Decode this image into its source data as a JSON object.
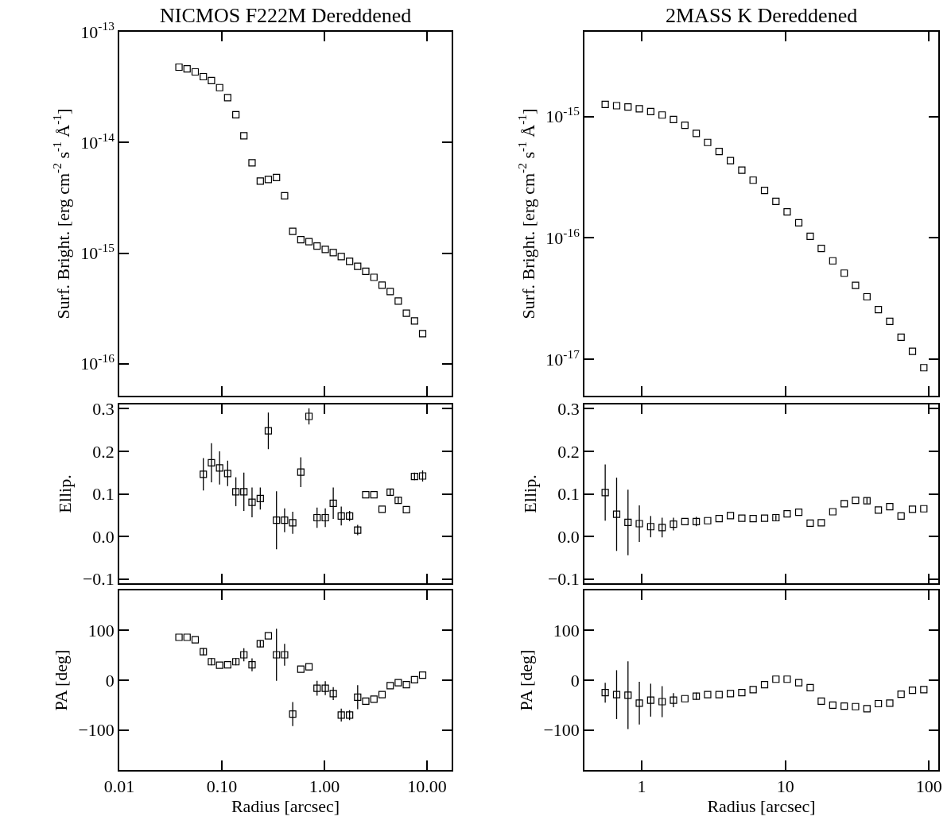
{
  "chart_data": [
    {
      "type": "scatter",
      "title": "NICMOS F222M Dereddened",
      "ylabel": "Surf. Bright. [erg cm$^{-2}$ s$^{-1}$ Å$^{-1}$]",
      "log": "xy",
      "marker": "square",
      "tick_labels": "y",
      "xlim": [
        0.01,
        17.4
      ],
      "xticks": [
        {
          "value": 0.1,
          "label": null
        },
        {
          "value": 1,
          "label": null
        },
        {
          "value": 10,
          "label": null
        }
      ],
      "ylim": [
        5.14e-17,
        1e-13
      ],
      "yticks": [
        {
          "value": 1e-13,
          "label": "10$^{-13}$"
        },
        {
          "value": 1e-14,
          "label": "10$^{-14}$"
        },
        {
          "value": 1e-15,
          "label": "10$^{-15}$"
        },
        {
          "value": 1e-16,
          "label": "10$^{-16}$"
        }
      ],
      "x": [
        0.0382,
        0.0458,
        0.055,
        0.066,
        0.0792,
        0.0951,
        0.114,
        0.137,
        0.164,
        0.197,
        0.237,
        0.284,
        0.341,
        0.409,
        0.491,
        0.589,
        0.707,
        0.848,
        1.02,
        1.22,
        1.46,
        1.76,
        2.11,
        2.53,
        3.04,
        3.65,
        4.38,
        5.25,
        6.3,
        7.56,
        9.07
      ],
      "series": [
        {
          "color": "#000000",
          "values": [
            4.79e-14,
            4.63e-14,
            4.34e-14,
            3.93e-14,
            3.63e-14,
            3.13e-14,
            2.54e-14,
            1.78e-14,
            1.15e-14,
            6.55e-15,
            4.48e-15,
            4.63e-15,
            4.82e-15,
            3.3e-15,
            1.57e-15,
            1.32e-15,
            1.27e-15,
            1.16e-15,
            1.08e-15,
            1.01e-15,
            9.29e-16,
            8.41e-16,
            7.59e-16,
            6.85e-16,
            6.04e-16,
            5.13e-16,
            4.49e-16,
            3.68e-16,
            2.86e-16,
            2.44e-16,
            1.87e-16
          ]
        }
      ]
    },
    {
      "type": "scatter",
      "title": "2MASS K Dereddened",
      "ylabel": "Surf. Bright. [erg cm$^{-2}$ s$^{-1}$ Å$^{-1}$]",
      "log": "xy",
      "marker": "square",
      "tick_labels": "y",
      "xlim": [
        0.4,
        116
      ],
      "xticks": [
        {
          "value": 1,
          "label": null
        },
        {
          "value": 10,
          "label": null
        },
        {
          "value": 100,
          "label": null
        }
      ],
      "ylim": [
        5e-18,
        5e-15
      ],
      "yticks": [
        {
          "value": 1e-15,
          "label": "10$^{-15}$"
        },
        {
          "value": 1e-16,
          "label": "10$^{-16}$"
        },
        {
          "value": 1e-17,
          "label": "10$^{-17}$"
        }
      ],
      "x": [
        0.558,
        0.67,
        0.804,
        0.964,
        1.157,
        1.389,
        1.666,
        2.0,
        2.4,
        2.88,
        3.46,
        4.15,
        4.98,
        5.97,
        7.17,
        8.6,
        10.3,
        12.4,
        14.9,
        17.8,
        21.4,
        25.7,
        30.8,
        37.0,
        44.4,
        53.3,
        63.9,
        76.7,
        92.0
      ],
      "series": [
        {
          "color": "#000000",
          "values": [
            1.26e-15,
            1.23e-15,
            1.2e-15,
            1.16e-15,
            1.1e-15,
            1.03e-15,
            9.46e-16,
            8.48e-16,
            7.26e-16,
            6.12e-16,
            5.16e-16,
            4.34e-16,
            3.62e-16,
            2.99e-16,
            2.46e-16,
            2e-16,
            1.64e-16,
            1.33e-16,
            1.03e-16,
            8.18e-17,
            6.47e-17,
            5.12e-17,
            4.06e-17,
            3.27e-17,
            2.56e-17,
            2.05e-17,
            1.52e-17,
            1.16e-17,
            8.51e-18
          ]
        }
      ]
    },
    {
      "type": "scatter",
      "ylabel": "Ellip.",
      "log": "x",
      "marker": "square",
      "tick_labels": "y",
      "xlim": [
        0.01,
        17.4
      ],
      "xticks": [
        {
          "value": 0.1,
          "label": null
        },
        {
          "value": 1,
          "label": null
        },
        {
          "value": 10,
          "label": null
        }
      ],
      "ylim": [
        -0.11,
        0.31
      ],
      "yticks": [
        {
          "value": -0.1,
          "label": "−0.1"
        },
        {
          "value": 0,
          "label": "0.0"
        },
        {
          "value": 0.1,
          "label": "0.1"
        },
        {
          "value": 0.2,
          "label": "0.2"
        },
        {
          "value": 0.3,
          "label": "0.3"
        }
      ],
      "x": [
        0.066,
        0.0792,
        0.0951,
        0.114,
        0.137,
        0.164,
        0.197,
        0.237,
        0.284,
        0.341,
        0.409,
        0.491,
        0.589,
        0.707,
        0.848,
        1.02,
        1.22,
        1.46,
        1.76,
        2.11,
        2.53,
        3.04,
        3.65,
        4.38,
        5.25,
        6.3,
        7.56,
        9.07
      ],
      "series": [
        {
          "color": "#000000",
          "values": [
            0.146,
            0.173,
            0.161,
            0.148,
            0.105,
            0.105,
            0.08,
            0.089,
            0.248,
            0.038,
            0.038,
            0.032,
            0.151,
            0.282,
            0.044,
            0.044,
            0.078,
            0.048,
            0.048,
            0.015,
            0.098,
            0.098,
            0.064,
            0.104,
            0.085,
            0.063,
            0.141,
            0.142
          ],
          "errors": [
            0.038,
            0.046,
            0.039,
            0.03,
            0.034,
            0.045,
            0.035,
            0.026,
            0.043,
            0.068,
            0.028,
            0.026,
            0.035,
            0.019,
            0.024,
            0.022,
            0.037,
            0.022,
            0.012,
            0.012,
            null,
            null,
            null,
            0.007,
            0.007,
            null,
            0.009,
            0.013
          ]
        }
      ]
    },
    {
      "type": "scatter",
      "ylabel": "Ellip.",
      "log": "x",
      "marker": "square",
      "tick_labels": "y",
      "xlim": [
        0.4,
        116
      ],
      "xticks": [
        {
          "value": 1,
          "label": null
        },
        {
          "value": 10,
          "label": null
        },
        {
          "value": 100,
          "label": null
        }
      ],
      "ylim": [
        -0.11,
        0.31
      ],
      "yticks": [
        {
          "value": -0.1,
          "label": "−0.1"
        },
        {
          "value": 0,
          "label": "0.0"
        },
        {
          "value": 0.1,
          "label": "0.1"
        },
        {
          "value": 0.2,
          "label": "0.2"
        },
        {
          "value": 0.3,
          "label": "0.3"
        }
      ],
      "x": [
        0.558,
        0.67,
        0.804,
        0.964,
        1.157,
        1.389,
        1.666,
        2.0,
        2.4,
        2.88,
        3.46,
        4.15,
        4.98,
        5.97,
        7.17,
        8.6,
        10.3,
        12.4,
        14.9,
        17.8,
        21.4,
        25.7,
        30.8,
        37.0,
        44.4,
        53.3,
        63.9,
        76.7,
        92.0
      ],
      "series": [
        {
          "color": "#000000",
          "values": [
            0.103,
            0.052,
            0.033,
            0.03,
            0.023,
            0.021,
            0.029,
            0.035,
            0.035,
            0.037,
            0.042,
            0.049,
            0.043,
            0.042,
            0.043,
            0.044,
            0.053,
            0.057,
            0.031,
            0.032,
            0.058,
            0.077,
            0.085,
            0.084,
            0.062,
            0.07,
            0.048,
            0.064,
            0.065
          ],
          "errors": [
            0.066,
            0.086,
            0.077,
            0.043,
            0.025,
            0.023,
            0.015,
            null,
            0.011,
            null,
            null,
            null,
            null,
            null,
            null,
            0.006,
            null,
            null,
            null,
            null,
            null,
            null,
            null,
            0.007,
            null,
            null,
            null,
            null,
            null
          ]
        }
      ]
    },
    {
      "type": "scatter",
      "ylabel": "PA [deg]",
      "xlabel": "Radius [arcsec]",
      "log": "x",
      "marker": "square",
      "xlim": [
        0.01,
        17.4
      ],
      "xticks": [
        {
          "value": 0.01,
          "label": "0.01"
        },
        {
          "value": 0.1,
          "label": "0.10"
        },
        {
          "value": 1,
          "label": "1.00"
        },
        {
          "value": 10,
          "label": "10.00"
        }
      ],
      "ylim": [
        -180,
        180
      ],
      "yticks": [
        {
          "value": -100,
          "label": "−100"
        },
        0,
        100
      ],
      "x": [
        0.0382,
        0.0458,
        0.055,
        0.066,
        0.0792,
        0.0951,
        0.114,
        0.137,
        0.164,
        0.197,
        0.237,
        0.284,
        0.341,
        0.409,
        0.491,
        0.589,
        0.707,
        0.848,
        1.02,
        1.22,
        1.46,
        1.76,
        2.11,
        2.53,
        3.04,
        3.65,
        4.38,
        5.25,
        6.3,
        7.56,
        9.07
      ],
      "series": [
        {
          "color": "#000000",
          "values": [
            86,
            86,
            81,
            57,
            37,
            30,
            31,
            37,
            51,
            31,
            73,
            89,
            51,
            51,
            -68,
            22,
            27,
            -16,
            -16,
            -27,
            -70,
            -70,
            -34,
            -42,
            -38,
            -29,
            -11,
            -5,
            -9,
            1,
            10
          ],
          "errors": [
            null,
            null,
            null,
            7,
            7,
            null,
            null,
            7,
            13,
            13,
            7,
            null,
            52,
            22,
            24,
            null,
            null,
            15,
            14,
            13,
            13,
            10,
            24,
            null,
            null,
            null,
            null,
            null,
            null,
            null,
            null
          ]
        }
      ]
    },
    {
      "type": "scatter",
      "ylabel": "PA [deg]",
      "xlabel": "Radius [arcsec]",
      "log": "x",
      "marker": "square",
      "xlim": [
        0.4,
        116
      ],
      "xticks": [
        {
          "value": 1,
          "label": "1"
        },
        {
          "value": 10,
          "label": "10"
        },
        {
          "value": 100,
          "label": "100"
        }
      ],
      "ylim": [
        -180,
        180
      ],
      "yticks": [
        {
          "value": -100,
          "label": "−100"
        },
        0,
        100
      ],
      "x": [
        0.558,
        0.67,
        0.804,
        0.964,
        1.157,
        1.389,
        1.666,
        2.0,
        2.4,
        2.88,
        3.46,
        4.15,
        4.98,
        5.97,
        7.17,
        8.6,
        10.3,
        12.4,
        14.9,
        17.8,
        21.4,
        25.7,
        30.8,
        37.0,
        44.4,
        53.3,
        63.9,
        76.7,
        92.0
      ],
      "series": [
        {
          "color": "#000000",
          "values": [
            -25,
            -29,
            -30,
            -46,
            -40,
            -43,
            -40,
            -37,
            -32,
            -29,
            -29,
            -27,
            -25,
            -19,
            -9,
            2,
            2,
            -5,
            -15,
            -42,
            -50,
            -52,
            -53,
            -57,
            -47,
            -46,
            -28,
            -20,
            -19
          ],
          "errors": [
            20,
            49,
            68,
            43,
            33,
            31,
            14,
            null,
            7,
            null,
            null,
            null,
            null,
            null,
            null,
            null,
            null,
            null,
            null,
            null,
            null,
            null,
            null,
            null,
            null,
            null,
            null,
            null,
            null
          ]
        }
      ]
    }
  ]
}
